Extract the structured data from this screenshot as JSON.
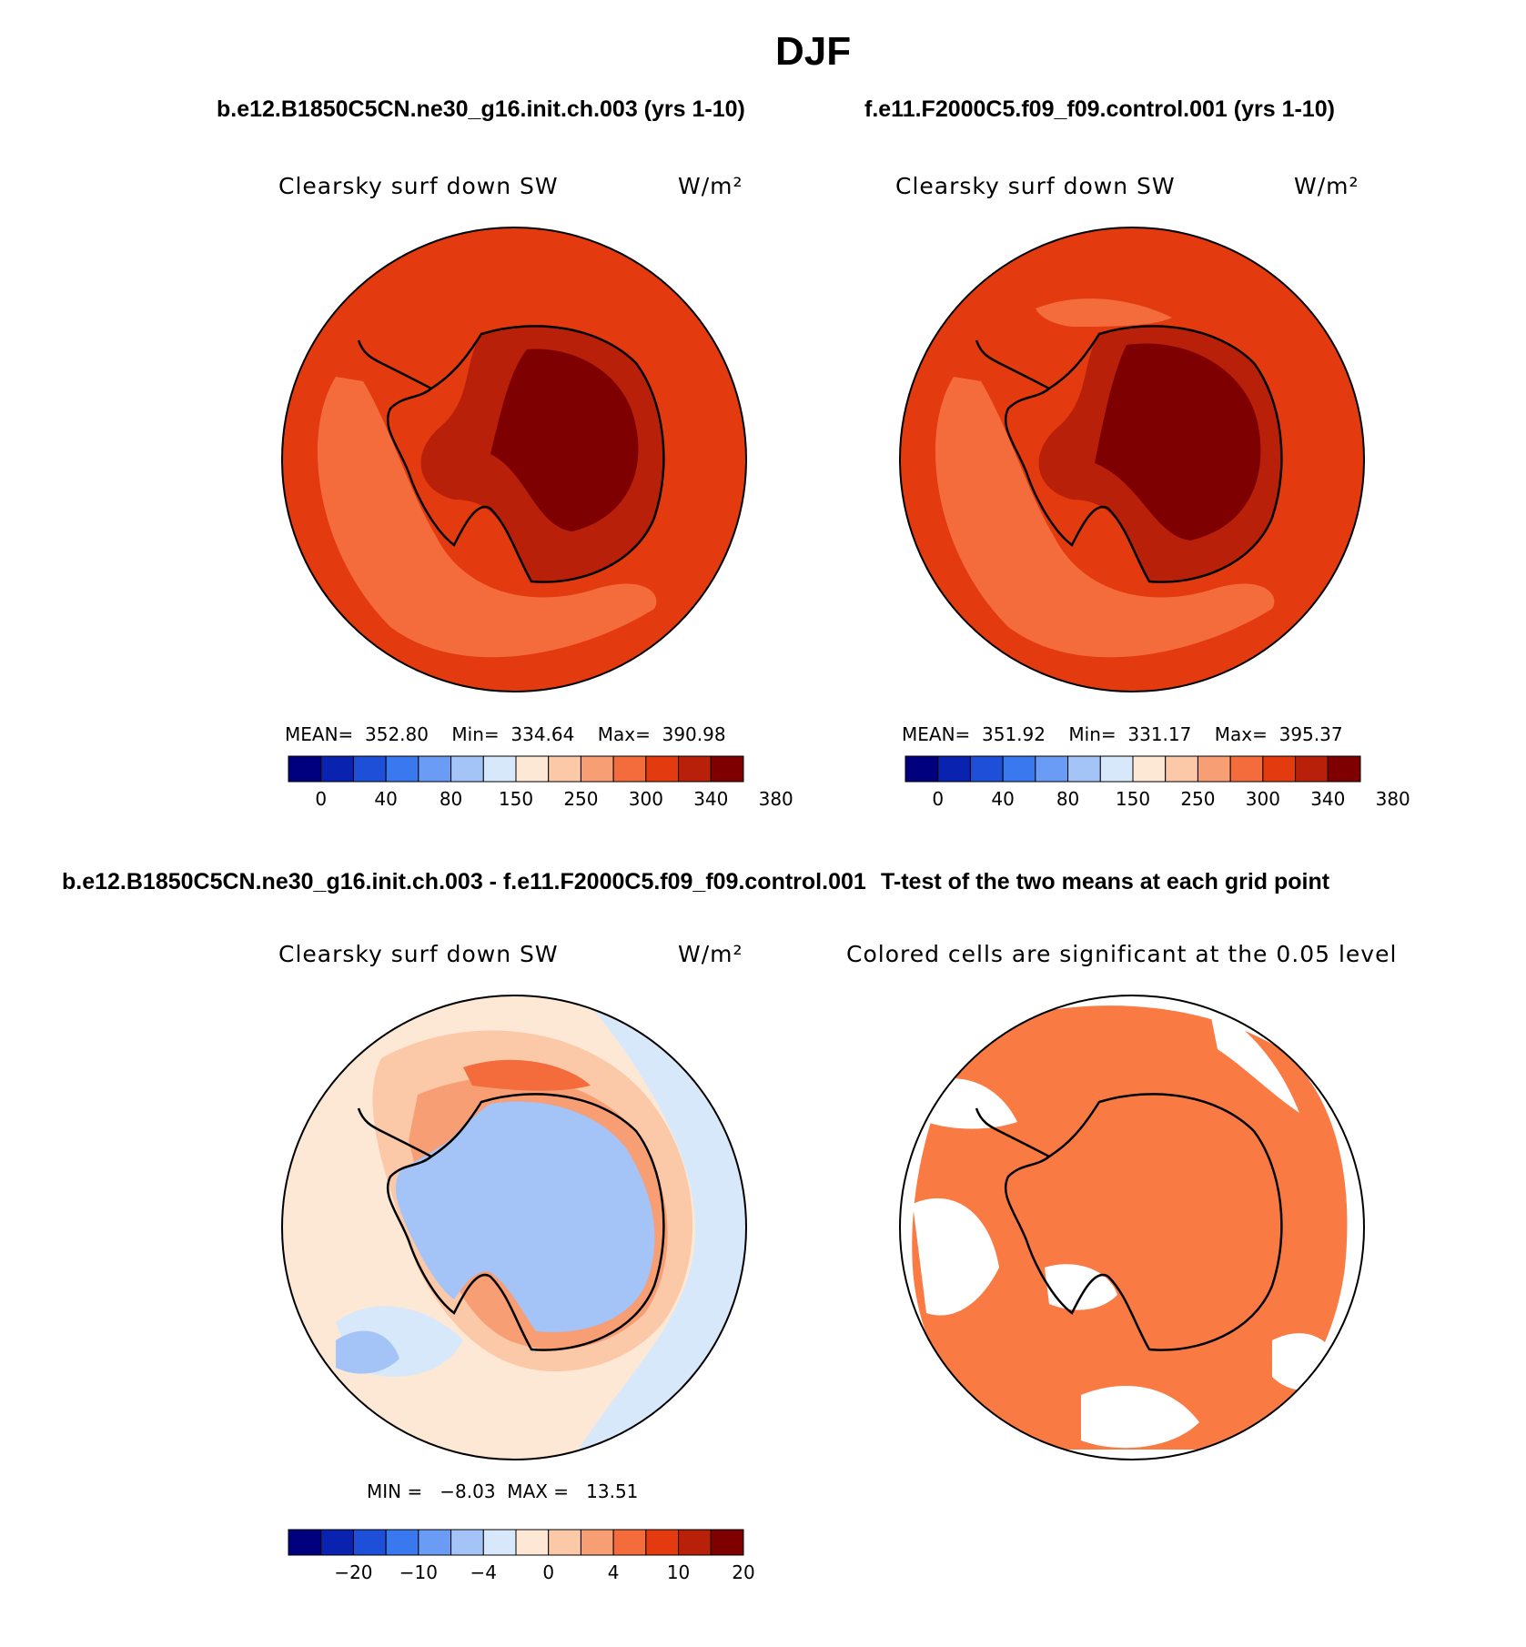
{
  "figure": {
    "title": "DJF",
    "case1_title": "b.e12.B1850C5CN.ne30_g16.init.ch.003 (yrs 1-10)",
    "case2_title": "f.e11.F2000C5.f09_f09.control.001 (yrs 1-10)",
    "diff_title": "b.e12.B1850C5CN.ne30_g16.init.ch.003 - f.e11.F2000C5.f09_f09.control.001",
    "ttest_title": "T-test of the two means at each grid point"
  },
  "panels": {
    "p1": {
      "variable": "Clearsky surf down SW",
      "units": "W/m²",
      "stats": "MEAN=  352.80    Min=  334.64    Max=  390.98"
    },
    "p2": {
      "variable": "Clearsky surf down SW",
      "units": "W/m²",
      "stats": "MEAN=  351.92    Min=  331.17    Max=  395.37"
    },
    "p3": {
      "variable": "Clearsky surf down SW",
      "units": "W/m²",
      "stats": "MIN =   −8.03  MAX =   13.51"
    },
    "p4": {
      "subtitle": "Colored cells are significant at the 0.05 level"
    }
  },
  "colorbars": {
    "abs": {
      "colors": [
        "#00007f",
        "#0a22b0",
        "#1d4fd9",
        "#3a78f0",
        "#6a9cf5",
        "#a4c3f7",
        "#d7e8fa",
        "#fde7d5",
        "#fbc8a8",
        "#f89e74",
        "#f46c3c",
        "#e33a0f",
        "#b8200a",
        "#7f0000"
      ],
      "ticks": [
        "0",
        "40",
        "80",
        "150",
        "250",
        "300",
        "340",
        "380"
      ]
    },
    "diff": {
      "colors": [
        "#00007f",
        "#0a22b0",
        "#1d4fd9",
        "#3a78f0",
        "#6a9cf5",
        "#a4c3f7",
        "#d7e8fa",
        "#fde7d5",
        "#fbc8a8",
        "#f89e74",
        "#f46c3c",
        "#e33a0f",
        "#b8200a",
        "#7f0000"
      ],
      "ticks": [
        "−20",
        "−10",
        "−4",
        "0",
        "4",
        "10",
        "20"
      ]
    }
  },
  "chart_data": [
    {
      "type": "heatmap",
      "title": "b.e12.B1850C5CN.ne30_g16.init.ch.003 (yrs 1-10)",
      "variable": "Clearsky surf down SW",
      "units": "W/m²",
      "projection": "south-polar stereographic",
      "stats": {
        "mean": 352.8,
        "min": 334.64,
        "max": 390.98
      },
      "levels": [
        0,
        20,
        40,
        60,
        80,
        100,
        150,
        200,
        250,
        280,
        300,
        320,
        340,
        360,
        380
      ],
      "dominant_colors": {
        "ocean": "#e33a0f",
        "antarctic_margin": "#b8200a",
        "east_antarctic_plateau": "#7f0000",
        "low_band": "#f46c3c"
      }
    },
    {
      "type": "heatmap",
      "title": "f.e11.F2000C5.f09_f09.control.001 (yrs 1-10)",
      "variable": "Clearsky surf down SW",
      "units": "W/m²",
      "projection": "south-polar stereographic",
      "stats": {
        "mean": 351.92,
        "min": 331.17,
        "max": 395.37
      },
      "levels": [
        0,
        20,
        40,
        60,
        80,
        100,
        150,
        200,
        250,
        280,
        300,
        320,
        340,
        360,
        380
      ],
      "dominant_colors": {
        "ocean": "#e33a0f",
        "antarctic_margin": "#b8200a",
        "east_antarctic_plateau": "#7f0000",
        "low_band": "#f46c3c"
      }
    },
    {
      "type": "heatmap",
      "title": "b.e12.B1850C5CN.ne30_g16.init.ch.003 - f.e11.F2000C5.f09_f09.control.001",
      "variable": "Clearsky surf down SW",
      "units": "W/m²",
      "projection": "south-polar stereographic",
      "stats": {
        "min": -8.03,
        "max": 13.51
      },
      "levels": [
        -30,
        -20,
        -15,
        -10,
        -6,
        -4,
        -2,
        0,
        2,
        4,
        6,
        10,
        15,
        20,
        30
      ],
      "dominant_colors": {
        "antarctica": "#a4c3f7",
        "ring": "#f89e74",
        "open_ocean": "#fde7d5"
      }
    },
    {
      "type": "heatmap",
      "title": "T-test of the two means at each grid point",
      "subtitle": "Colored cells are significant at the 0.05 level",
      "projection": "south-polar stereographic",
      "significance_level": 0.05,
      "significant_color": "#fa7a44"
    }
  ]
}
